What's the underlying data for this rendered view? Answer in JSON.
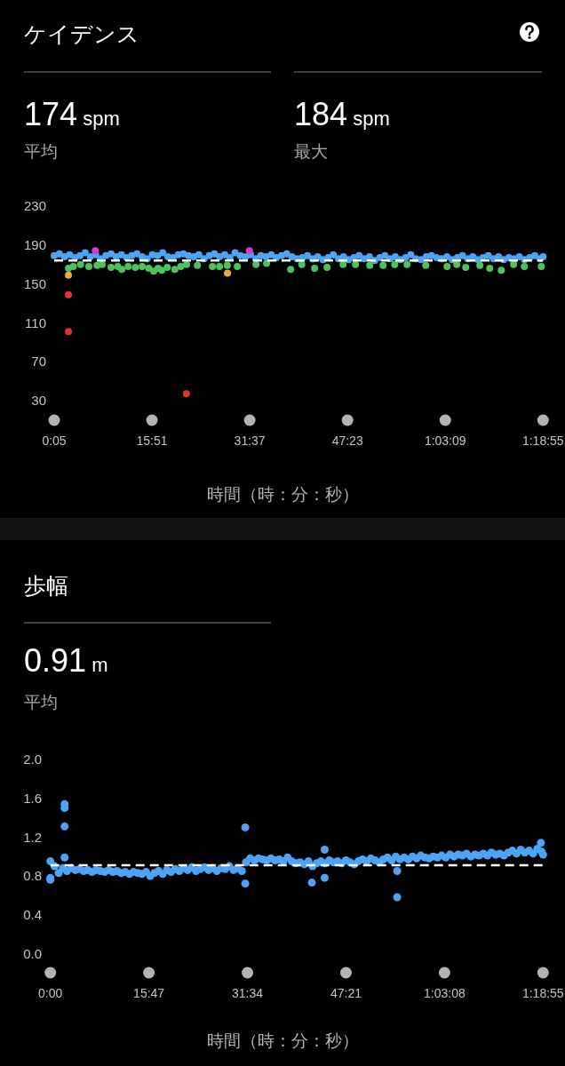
{
  "chart_data": [
    {
      "type": "scatter",
      "title": "ケイデンス",
      "xlabel": "時間（時：分：秒）",
      "annotations": [
        "174 spm",
        "平均",
        "184 spm",
        "最大"
      ],
      "xlim": [
        5,
        4735
      ],
      "ylim": [
        30,
        230
      ],
      "xticks": [
        {
          "value": 5,
          "label": "0:05"
        },
        {
          "value": 951,
          "label": "15:51"
        },
        {
          "value": 1897,
          "label": "31:37"
        },
        {
          "value": 2843,
          "label": "47:23"
        },
        {
          "value": 3789,
          "label": "1:03:09"
        },
        {
          "value": 4735,
          "label": "1:18:55"
        }
      ],
      "yticks": [
        30,
        70,
        110,
        150,
        190,
        230
      ],
      "marker": "circle",
      "ref_lines": [
        {
          "axis": "y",
          "value": 174,
          "color": "#ffffff",
          "line_style": "dashed"
        }
      ],
      "series": [
        {
          "color": "#4da3f5",
          "x": [
            5,
            55,
            105,
            155,
            205,
            255,
            305,
            355,
            405,
            455,
            505,
            555,
            605,
            655,
            705,
            755,
            805,
            855,
            905,
            955,
            1005,
            1055,
            1105,
            1155,
            1205,
            1255,
            1305,
            1355,
            1405,
            1455,
            1505,
            1555,
            1605,
            1655,
            1705,
            1755,
            1805,
            1855,
            1905,
            1955,
            2005,
            2055,
            2105,
            2155,
            2205,
            2255,
            2305,
            2355,
            2405,
            2455,
            2505,
            2555,
            2605,
            2655,
            2705,
            2755,
            2805,
            2855,
            2905,
            2955,
            3005,
            3055,
            3105,
            3155,
            3205,
            3255,
            3305,
            3355,
            3405,
            3455,
            3505,
            3555,
            3605,
            3655,
            3705,
            3755,
            3805,
            3855,
            3905,
            3955,
            4005,
            4055,
            4105,
            4155,
            4205,
            4255,
            4305,
            4355,
            4405,
            4455,
            4505,
            4555,
            4605,
            4655,
            4705,
            4735
          ],
          "values": [
            179,
            181,
            178,
            180,
            177,
            179,
            182,
            178,
            180,
            176,
            179,
            181,
            178,
            180,
            177,
            179,
            181,
            178,
            176,
            180,
            179,
            182,
            178,
            177,
            180,
            181,
            179,
            178,
            180,
            176,
            179,
            181,
            178,
            180,
            177,
            182,
            179,
            178,
            180,
            176,
            179,
            178,
            180,
            177,
            179,
            181,
            178,
            176,
            177,
            179,
            176,
            178,
            175,
            177,
            180,
            176,
            178,
            175,
            177,
            179,
            176,
            178,
            174,
            177,
            179,
            176,
            178,
            175,
            177,
            180,
            176,
            175,
            178,
            179,
            177,
            176,
            178,
            175,
            177,
            179,
            176,
            178,
            175,
            177,
            179,
            176,
            178,
            175,
            177,
            176,
            178,
            175,
            177,
            179,
            176,
            178
          ]
        },
        {
          "color": "#4cc35a",
          "x": [
            143,
            190,
            260,
            340,
            420,
            469,
            555,
            620,
            659,
            720,
            790,
            856,
            920,
            968,
            1010,
            1046,
            1100,
            1172,
            1230,
            1286,
            1390,
            1536,
            1605,
            1680,
            1777,
            1957,
            2060,
            2293,
            2400,
            2525,
            2645,
            2800,
            2920,
            3058,
            3187,
            3300,
            3419,
            3600,
            3806,
            3900,
            3987,
            4124,
            4219,
            4331,
            4450,
            4554,
            4718
          ],
          "values": [
            166,
            168,
            170,
            168,
            169,
            170,
            167,
            168,
            165,
            168,
            167,
            168,
            166,
            163,
            166,
            164,
            167,
            165,
            168,
            170,
            169,
            168,
            168,
            169,
            168,
            170,
            171,
            165,
            170,
            166,
            167,
            170,
            170,
            169,
            169,
            170,
            170,
            169,
            168,
            170,
            167,
            169,
            166,
            164,
            170,
            168,
            168
          ]
        },
        {
          "color": "#f5a33b",
          "x": [
            143,
            1682
          ],
          "values": [
            159,
            161
          ]
        },
        {
          "color": "#e5312b",
          "x": [
            143,
            143,
            1284
          ],
          "values": [
            139,
            101,
            37
          ]
        },
        {
          "color": "#d639d0",
          "x": [
            403,
            1894
          ],
          "values": [
            184,
            184
          ]
        }
      ]
    },
    {
      "type": "scatter",
      "title": "歩幅",
      "xlabel": "時間（時：分：秒）",
      "annotations": [
        "0.91 m",
        "平均"
      ],
      "xlim": [
        0,
        4735
      ],
      "ylim": [
        0,
        2
      ],
      "xticks": [
        {
          "value": 0,
          "label": "0:00"
        },
        {
          "value": 947,
          "label": "15:47"
        },
        {
          "value": 1894,
          "label": "31:34"
        },
        {
          "value": 2841,
          "label": "47:21"
        },
        {
          "value": 3788,
          "label": "1:03:08"
        },
        {
          "value": 4735,
          "label": "1:18:55"
        }
      ],
      "yticks": [
        {
          "value": 0,
          "label": "0.0"
        },
        0.4,
        0.8,
        1.2,
        1.6,
        {
          "value": 2,
          "label": "2.0"
        }
      ],
      "marker": "circle",
      "ref_lines": [
        {
          "axis": "y",
          "value": 0.91,
          "color": "#ffffff",
          "line_style": "dashed"
        }
      ],
      "series": [
        {
          "color": "#4da3f5",
          "x": [
            0,
            40,
            80,
            120,
            160,
            200,
            240,
            280,
            320,
            360,
            400,
            440,
            480,
            520,
            560,
            600,
            640,
            680,
            720,
            760,
            800,
            840,
            880,
            920,
            960,
            1000,
            1040,
            1080,
            1120,
            1160,
            1200,
            1240,
            1280,
            1320,
            1360,
            1400,
            1440,
            1480,
            1520,
            1560,
            1600,
            1640,
            1680,
            1720,
            1760,
            1800,
            1840,
            1880,
            1920,
            1960,
            2000,
            2040,
            2080,
            2120,
            2160,
            2200,
            2240,
            2280,
            2320,
            2360,
            2400,
            2440,
            2480,
            2520,
            2560,
            2600,
            2640,
            2680,
            2720,
            2760,
            2800,
            2840,
            2880,
            2920,
            2960,
            3000,
            3040,
            3080,
            3120,
            3160,
            3200,
            3240,
            3280,
            3320,
            3360,
            3400,
            3440,
            3480,
            3520,
            3560,
            3600,
            3640,
            3680,
            3720,
            3760,
            3800,
            3840,
            3880,
            3920,
            3960,
            4000,
            4040,
            4080,
            4120,
            4160,
            4200,
            4240,
            4280,
            4320,
            4360,
            4400,
            4440,
            4480,
            4520,
            4560,
            4600,
            4640,
            4680,
            4720,
            4735,
            0,
            0,
            137,
            137,
            137,
            137,
            1873,
            1873,
            2513,
            2636,
            2636,
            3333,
            3333,
            4714
          ],
          "values": [
            0.78,
            0.9,
            0.83,
            0.88,
            0.85,
            0.88,
            0.86,
            0.87,
            0.85,
            0.86,
            0.84,
            0.86,
            0.85,
            0.84,
            0.86,
            0.84,
            0.85,
            0.83,
            0.84,
            0.82,
            0.84,
            0.83,
            0.82,
            0.84,
            0.8,
            0.83,
            0.85,
            0.82,
            0.86,
            0.84,
            0.87,
            0.85,
            0.88,
            0.86,
            0.89,
            0.85,
            0.87,
            0.89,
            0.86,
            0.88,
            0.85,
            0.88,
            0.87,
            0.9,
            0.86,
            0.88,
            0.85,
            0.94,
            0.98,
            0.96,
            0.98,
            0.97,
            0.96,
            0.98,
            0.96,
            0.97,
            0.95,
            0.99,
            0.95,
            0.93,
            0.94,
            0.92,
            0.95,
            0.9,
            0.93,
            0.95,
            0.93,
            0.96,
            0.94,
            0.95,
            0.93,
            0.96,
            0.94,
            0.92,
            0.95,
            0.97,
            0.95,
            0.98,
            0.96,
            0.94,
            0.97,
            0.99,
            0.96,
            1.0,
            0.97,
            0.99,
            0.97,
            1.0,
            0.98,
            1.01,
            0.99,
            0.98,
            1.0,
            0.99,
            1.01,
            0.99,
            1.02,
            1.0,
            1.02,
            1.01,
            1.03,
            1.0,
            1.02,
            1.01,
            1.03,
            1.01,
            1.04,
            1.02,
            1.03,
            1.01,
            1.04,
            1.06,
            1.03,
            1.07,
            1.04,
            1.06,
            1.03,
            1.08,
            1.05,
            1.02,
            0.95,
            0.76,
            1.54,
            1.5,
            1.31,
            0.99,
            1.3,
            0.72,
            0.73,
            1.07,
            0.78,
            0.58,
            0.85,
            1.14
          ]
        }
      ]
    }
  ]
}
